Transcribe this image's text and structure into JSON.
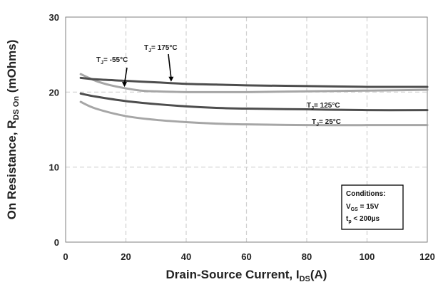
{
  "chart_data": {
    "type": "line",
    "title": "",
    "xlabel": {
      "main": "Drain-Source Current, I",
      "sub": "DS",
      "tail": "(A)"
    },
    "ylabel": {
      "main": "On Resistance, R",
      "sub": "DS On",
      "tail": " (mOhms)"
    },
    "xlim": [
      0,
      120
    ],
    "ylim": [
      0,
      30
    ],
    "xticks": [
      0,
      20,
      40,
      60,
      80,
      100,
      120
    ],
    "yticks": [
      0,
      10,
      20,
      30
    ],
    "grid": true,
    "series": [
      {
        "name": "-55°C",
        "color": "#a6a6a6",
        "x": [
          5,
          10,
          15,
          20,
          25,
          30,
          40,
          50,
          60,
          80,
          100,
          120
        ],
        "y": [
          22.4,
          21.5,
          20.9,
          20.5,
          20.2,
          20.1,
          20.0,
          20.0,
          20.0,
          20.1,
          20.2,
          20.3
        ]
      },
      {
        "name": "175°C",
        "color": "#4d4d4d",
        "x": [
          5,
          10,
          20,
          30,
          40,
          50,
          60,
          80,
          100,
          120
        ],
        "y": [
          21.9,
          21.7,
          21.5,
          21.3,
          21.1,
          21.0,
          20.9,
          20.8,
          20.7,
          20.7
        ]
      },
      {
        "name": "125°C",
        "color": "#4d4d4d",
        "x": [
          5,
          10,
          20,
          30,
          40,
          50,
          60,
          80,
          100,
          120
        ],
        "y": [
          19.8,
          19.4,
          18.8,
          18.4,
          18.1,
          17.9,
          17.8,
          17.7,
          17.6,
          17.6
        ]
      },
      {
        "name": "25°C",
        "color": "#a6a6a6",
        "x": [
          5,
          10,
          20,
          30,
          40,
          50,
          60,
          80,
          100,
          120
        ],
        "y": [
          18.7,
          17.8,
          16.8,
          16.3,
          16.0,
          15.8,
          15.7,
          15.6,
          15.6,
          15.6
        ]
      }
    ],
    "annotations": [
      {
        "series": "-55°C",
        "pre": "T",
        "sub": "J",
        "text": "= -55°C",
        "arrow_to": [
          20,
          20.5
        ]
      },
      {
        "series": "175°C",
        "pre": "T",
        "sub": "J",
        "text": "= 175°C",
        "arrow_to": [
          35,
          21.2
        ]
      },
      {
        "series": "125°C",
        "pre": "T",
        "sub": "J",
        "text": "= 125°C"
      },
      {
        "series": "25°C",
        "pre": "T",
        "sub": "J",
        "text": "= 25°C"
      }
    ],
    "conditions_box": {
      "heading": "Conditions:",
      "lines": [
        {
          "pre": "V",
          "sub": "GS",
          "text": " = 15V"
        },
        {
          "pre": "t",
          "sub": "p",
          "text": " < 200µs"
        }
      ]
    }
  }
}
